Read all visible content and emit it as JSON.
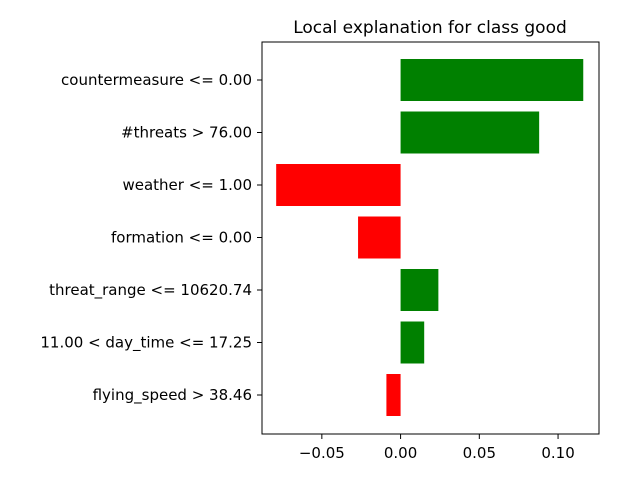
{
  "chart_data": {
    "type": "bar",
    "orientation": "horizontal",
    "title": "Local explanation for class good",
    "xlabel": "",
    "ylabel": "",
    "categories": [
      "countermeasure <= 0.00",
      "#threats > 76.00",
      "weather <= 1.00",
      "formation <= 0.00",
      "threat_range <= 10620.74",
      "11.00 < day_time <= 17.25",
      "flying_speed > 38.46"
    ],
    "values": [
      0.116,
      0.088,
      -0.079,
      -0.027,
      0.024,
      0.015,
      -0.009
    ],
    "xlim": [
      -0.088,
      0.126
    ],
    "xticks": [
      -0.05,
      0.0,
      0.05,
      0.1
    ],
    "xtick_labels": [
      "−0.05",
      "0.00",
      "0.05",
      "0.10"
    ],
    "grid": false,
    "colors": {
      "positive": "#008000",
      "negative": "#ff0000"
    }
  }
}
